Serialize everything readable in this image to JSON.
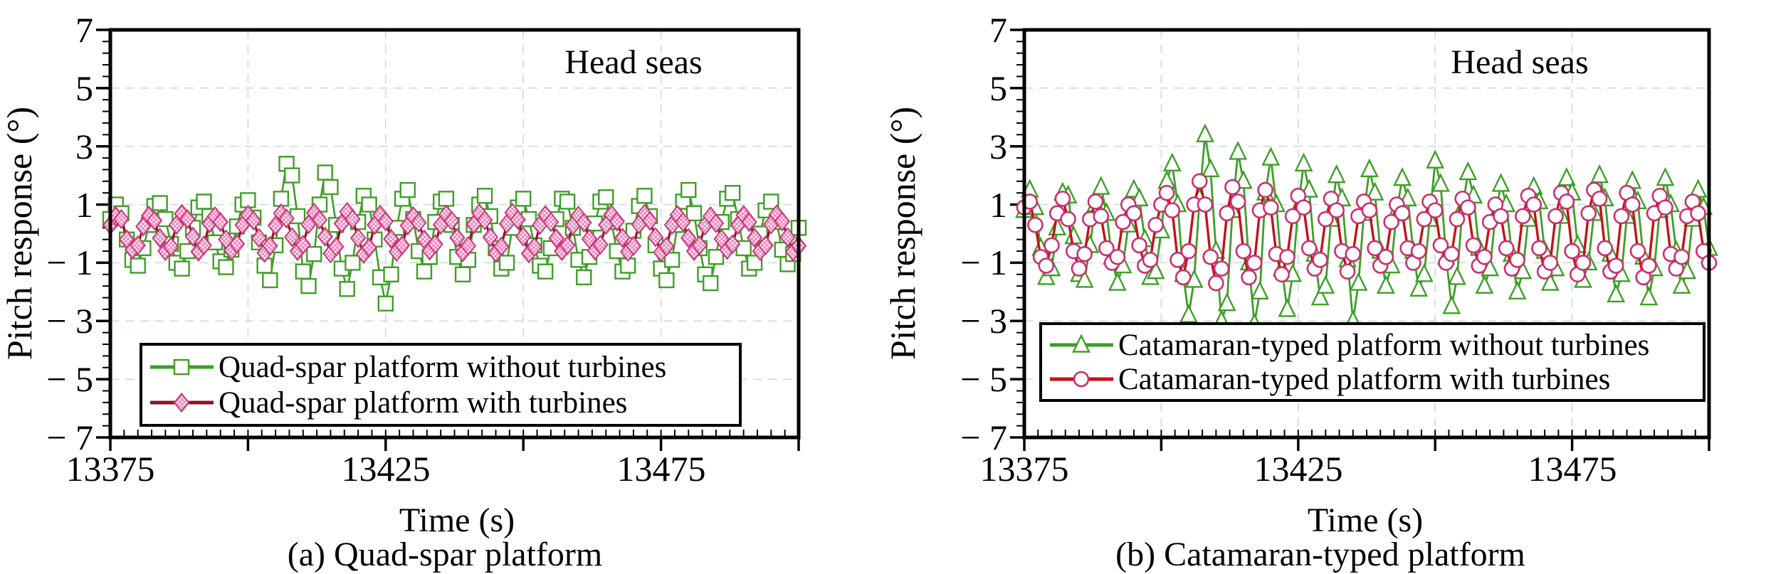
{
  "chart_data": [
    {
      "type": "line",
      "annotation": "Head seas",
      "caption": "(a) Quad-spar platform",
      "xlabel": "Time (s)",
      "ylabel": "Pitch response (°)",
      "xlim": [
        13375,
        13500
      ],
      "ylim": [
        -7,
        7
      ],
      "xtick_labels": [
        "13375",
        "13425",
        "13475"
      ],
      "xtick_label_values": [
        13375,
        13425,
        13475
      ],
      "xtick_major_step": 25,
      "xtick_minor_step": 2.5,
      "ytick_labels": [
        "7",
        "5",
        "3",
        "1",
        "− 1",
        "− 3",
        "− 5",
        "− 7"
      ],
      "ytick_label_values": [
        7,
        5,
        3,
        1,
        -1,
        -3,
        -5,
        -7
      ],
      "ytick_major_step": 2,
      "ytick_minor_step": 0.4,
      "grid": {
        "x_values": [
          13400,
          13425,
          13450,
          13475
        ],
        "y_values": [
          5,
          3,
          1,
          -1,
          -3,
          -5
        ],
        "color": "#ccdade"
      },
      "t_start": 13375,
      "t_step": 1,
      "series": [
        {
          "name": "Quad-spar platform without turbines",
          "marker": "square",
          "line_color": "#3f9e28",
          "line_width": 2.6,
          "marker_color": "#3f9e28",
          "marker_fill": "#ffffff",
          "values": [
            0.5,
            1.0,
            0.7,
            -0.2,
            -0.9,
            -1.1,
            -0.5,
            0.3,
            0.95,
            1.05,
            0.5,
            -0.35,
            -1.0,
            -1.2,
            -0.6,
            0.2,
            0.9,
            1.1,
            0.6,
            -0.3,
            -0.95,
            -1.15,
            -0.55,
            0.25,
            1.0,
            1.15,
            0.55,
            -0.3,
            -1.1,
            -1.6,
            -0.4,
            1.2,
            2.4,
            2.0,
            0.6,
            -1.3,
            -1.8,
            -0.7,
            1.0,
            2.1,
            1.6,
            0.3,
            -1.2,
            -1.9,
            -1.0,
            0.4,
            1.3,
            1.0,
            -0.2,
            -1.5,
            -2.4,
            -1.4,
            0.2,
            1.2,
            1.5,
            0.5,
            -0.6,
            -1.3,
            -0.8,
            0.4,
            1.1,
            1.2,
            0.3,
            -0.8,
            -1.4,
            -0.9,
            0.3,
            1.0,
            1.3,
            0.6,
            -0.5,
            -1.2,
            -1.0,
            0.2,
            0.9,
            1.2,
            0.5,
            -0.4,
            -1.1,
            -1.3,
            -0.5,
            0.5,
            1.2,
            1.1,
            0.2,
            -0.9,
            -1.5,
            -0.8,
            0.35,
            1.1,
            1.25,
            0.4,
            -0.6,
            -1.3,
            -1.1,
            0.1,
            0.95,
            1.3,
            0.6,
            -0.4,
            -1.2,
            -1.6,
            -0.9,
            0.3,
            1.1,
            1.5,
            0.7,
            -0.5,
            -1.4,
            -1.7,
            -0.8,
            0.4,
            1.2,
            1.4,
            0.5,
            -0.5,
            -1.2,
            -1.0,
            0.0,
            0.8,
            1.1,
            0.4,
            -0.55,
            -1.05,
            -0.7,
            0.2
          ]
        },
        {
          "name": "Quad-spar platform with turbines",
          "marker": "diamond",
          "line_color": "#8f1222",
          "line_width": 3.2,
          "marker_color": "#c23a75",
          "marker_fill": "hatch",
          "hatch_color": "#ee82bb",
          "values": [
            0.3,
            0.6,
            0.5,
            -0.2,
            -0.55,
            -0.4,
            0.25,
            0.62,
            0.45,
            -0.15,
            -0.6,
            -0.45,
            0.3,
            0.68,
            0.5,
            -0.1,
            -0.62,
            -0.4,
            0.35,
            0.6,
            0.4,
            -0.2,
            -0.58,
            -0.35,
            0.3,
            0.65,
            0.45,
            -0.15,
            -0.66,
            -0.42,
            0.28,
            0.7,
            0.52,
            -0.12,
            -0.6,
            -0.38,
            0.32,
            0.72,
            0.48,
            -0.1,
            -0.68,
            -0.45,
            0.35,
            0.75,
            0.5,
            -0.15,
            -0.7,
            -0.48,
            0.3,
            0.65,
            0.42,
            -0.18,
            -0.62,
            -0.4,
            0.28,
            0.6,
            0.38,
            -0.2,
            -0.58,
            -0.36,
            0.3,
            0.66,
            0.44,
            -0.14,
            -0.64,
            -0.42,
            0.32,
            0.7,
            0.46,
            -0.12,
            -0.66,
            -0.44,
            0.34,
            0.72,
            0.48,
            -0.1,
            -0.68,
            -0.46,
            0.3,
            0.64,
            0.4,
            -0.16,
            -0.6,
            -0.4,
            0.28,
            0.62,
            0.38,
            -0.18,
            -0.58,
            -0.38,
            0.3,
            0.66,
            0.42,
            -0.14,
            -0.62,
            -0.42,
            0.32,
            0.68,
            0.44,
            -0.12,
            -0.64,
            -0.44,
            0.3,
            0.64,
            0.4,
            -0.15,
            -0.6,
            -0.4,
            0.28,
            0.6,
            0.36,
            -0.18,
            -0.56,
            -0.36,
            0.3,
            0.64,
            0.4,
            -0.14,
            -0.6,
            -0.4,
            0.32,
            0.66,
            0.42,
            -0.12,
            -0.62,
            -0.42
          ]
        }
      ]
    },
    {
      "type": "line",
      "annotation": "Head seas",
      "caption": "(b) Catamaran-typed platform",
      "xlabel": "Time (s)",
      "ylabel": "Pitch response (°)",
      "xlim": [
        13375,
        13500
      ],
      "ylim": [
        -7,
        7
      ],
      "xtick_labels": [
        "13375",
        "13425",
        "13475"
      ],
      "xtick_label_values": [
        13375,
        13425,
        13475
      ],
      "xtick_major_step": 25,
      "xtick_minor_step": 2.5,
      "ytick_labels": [
        "7",
        "5",
        "3",
        "1",
        "− 1",
        "− 3",
        "− 5",
        "− 7"
      ],
      "ytick_label_values": [
        7,
        5,
        3,
        1,
        -1,
        -3,
        -5,
        -7
      ],
      "ytick_major_step": 2,
      "ytick_minor_step": 0.4,
      "grid": {
        "x_values": [
          13400,
          13425,
          13450,
          13475
        ],
        "y_values": [
          5,
          3,
          1,
          -1,
          -3,
          -5
        ],
        "color": "#ccdade"
      },
      "t_start": 13375,
      "t_step": 1,
      "series": [
        {
          "name": "Catamaran-typed platform without turbines",
          "marker": "triangle",
          "line_color": "#3f9e28",
          "line_width": 2.8,
          "marker_color": "#3f9e28",
          "marker_fill": "#ffffff",
          "values": [
            0.8,
            1.5,
            0.9,
            -0.5,
            -1.5,
            -1.2,
            0.2,
            1.4,
            1.3,
            -0.1,
            -1.4,
            -1.6,
            -0.4,
            1.0,
            1.6,
            0.7,
            -0.8,
            -1.7,
            -1.1,
            0.3,
            1.5,
            1.2,
            -0.2,
            -1.5,
            -1.3,
            0.1,
            1.8,
            2.4,
            1.0,
            -1.4,
            -2.8,
            -1.6,
            1.2,
            3.4,
            2.2,
            -0.6,
            -3.0,
            -2.4,
            0.8,
            2.8,
            1.8,
            -1.0,
            -3.1,
            -2.0,
            1.4,
            2.6,
            1.0,
            -1.2,
            -2.6,
            -1.4,
            0.9,
            2.4,
            1.5,
            -0.7,
            -2.2,
            -1.8,
            0.5,
            2.0,
            1.2,
            -0.9,
            -3.0,
            -1.7,
            0.7,
            2.2,
            1.4,
            -0.6,
            -1.8,
            -1.1,
            0.8,
            1.9,
            1.2,
            -0.6,
            -1.9,
            -1.4,
            0.5,
            2.5,
            1.7,
            -0.8,
            -2.5,
            -1.5,
            0.9,
            2.1,
            1.3,
            -0.5,
            -1.8,
            -1.2,
            0.6,
            1.7,
            1.0,
            -0.7,
            -2.0,
            -1.3,
            0.5,
            1.6,
            1.1,
            -0.6,
            -1.7,
            -1.2,
            0.6,
            1.9,
            1.4,
            -0.4,
            -1.6,
            -1.0,
            0.7,
            2.0,
            1.2,
            -0.7,
            -2.1,
            -1.4,
            0.6,
            1.8,
            1.1,
            -0.8,
            -2.2,
            -1.2,
            0.8,
            1.9,
            1.0,
            -0.6,
            -1.8,
            -1.3,
            0.5,
            1.5,
            0.9,
            -0.5
          ]
        },
        {
          "name": "Catamaran-typed platform with turbines",
          "marker": "circle",
          "line_color": "#c11318",
          "line_width": 3.4,
          "marker_color": "#cb2f6d",
          "marker_fill": "#ffffff",
          "values": [
            0.9,
            1.1,
            0.3,
            -0.8,
            -1.1,
            -0.4,
            0.7,
            1.2,
            0.5,
            -0.6,
            -1.2,
            -0.7,
            0.5,
            1.1,
            0.6,
            -0.5,
            -1.0,
            -0.8,
            0.4,
            1.0,
            0.7,
            -0.4,
            -1.1,
            -0.9,
            0.3,
            1.0,
            1.4,
            0.8,
            -0.9,
            -1.5,
            -0.6,
            1.0,
            1.8,
            1.0,
            -0.8,
            -1.7,
            -1.2,
            0.7,
            1.6,
            1.1,
            -0.6,
            -1.5,
            -1.0,
            0.8,
            1.5,
            0.9,
            -0.7,
            -1.4,
            -0.8,
            0.6,
            1.3,
            0.9,
            -0.5,
            -1.2,
            -0.9,
            0.5,
            1.2,
            0.8,
            -0.6,
            -1.3,
            -0.7,
            0.6,
            1.1,
            0.8,
            -0.5,
            -1.1,
            -0.8,
            0.4,
            1.0,
            0.7,
            -0.5,
            -1.0,
            -0.6,
            0.5,
            1.1,
            0.8,
            -0.4,
            -1.0,
            -0.7,
            0.5,
            1.2,
            0.9,
            -0.4,
            -1.1,
            -0.8,
            0.4,
            1.0,
            0.6,
            -0.5,
            -1.2,
            -0.9,
            0.6,
            1.3,
            1.0,
            -0.5,
            -1.3,
            -1.0,
            0.6,
            1.4,
            1.1,
            -0.6,
            -1.4,
            -1.0,
            0.7,
            1.5,
            1.2,
            -0.5,
            -1.3,
            -1.1,
            0.6,
            1.4,
            1.0,
            -0.6,
            -1.5,
            -1.1,
            0.7,
            1.3,
            0.9,
            -0.7,
            -1.2,
            -0.8,
            0.6,
            1.1,
            0.7,
            -0.6,
            -1.0
          ]
        }
      ]
    }
  ]
}
